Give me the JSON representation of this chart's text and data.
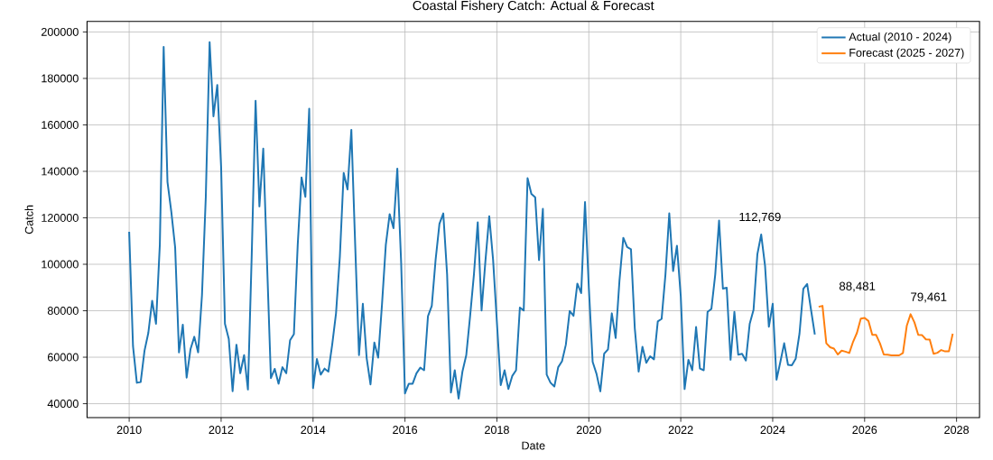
{
  "chart_data": {
    "type": "line",
    "title": "Coastal Fishery Catch: Actual & Forecast",
    "xlabel": "Date",
    "ylabel": "Catch",
    "xlim": [
      "2009-02",
      "2028-07"
    ],
    "xticks": [
      "2010",
      "2012",
      "2014",
      "2016",
      "2018",
      "2020",
      "2022",
      "2024",
      "2026",
      "2028"
    ],
    "ylim": [
      34000,
      204500
    ],
    "yticks": [
      40000,
      60000,
      80000,
      100000,
      120000,
      140000,
      160000,
      180000,
      200000
    ],
    "grid": true,
    "legend": "top right",
    "annotations": [
      "112,769",
      "88,481",
      "79,461"
    ],
    "series": [
      {
        "name": "Actual (2010 - 2024)",
        "color": "#1f77b4",
        "x": [
          "2010-01",
          "2010-02",
          "2010-03",
          "2010-04",
          "2010-05",
          "2010-06",
          "2010-07",
          "2010-08",
          "2010-09",
          "2010-10",
          "2010-11",
          "2010-12",
          "2011-01",
          "2011-02",
          "2011-03",
          "2011-04",
          "2011-05",
          "2011-06",
          "2011-07",
          "2011-08",
          "2011-09",
          "2011-10",
          "2011-11",
          "2011-12",
          "2012-01",
          "2012-02",
          "2012-03",
          "2012-04",
          "2012-05",
          "2012-06",
          "2012-07",
          "2012-08",
          "2012-09",
          "2012-10",
          "2012-11",
          "2012-12",
          "2013-01",
          "2013-02",
          "2013-03",
          "2013-04",
          "2013-05",
          "2013-06",
          "2013-07",
          "2013-08",
          "2013-09",
          "2013-10",
          "2013-11",
          "2013-12",
          "2014-01",
          "2014-02",
          "2014-03",
          "2014-04",
          "2014-05",
          "2014-06",
          "2014-07",
          "2014-08",
          "2014-09",
          "2014-10",
          "2014-11",
          "2014-12",
          "2015-01",
          "2015-02",
          "2015-03",
          "2015-04",
          "2015-05",
          "2015-06",
          "2015-07",
          "2015-08",
          "2015-09",
          "2015-10",
          "2015-11",
          "2015-12",
          "2016-01",
          "2016-02",
          "2016-03",
          "2016-04",
          "2016-05",
          "2016-06",
          "2016-07",
          "2016-08",
          "2016-09",
          "2016-10",
          "2016-11",
          "2016-12",
          "2017-01",
          "2017-02",
          "2017-03",
          "2017-04",
          "2017-05",
          "2017-06",
          "2017-07",
          "2017-08",
          "2017-09",
          "2017-10",
          "2017-11",
          "2017-12",
          "2018-01",
          "2018-02",
          "2018-03",
          "2018-04",
          "2018-05",
          "2018-06",
          "2018-07",
          "2018-08",
          "2018-09",
          "2018-10",
          "2018-11",
          "2018-12",
          "2019-01",
          "2019-02",
          "2019-03",
          "2019-04",
          "2019-05",
          "2019-06",
          "2019-07",
          "2019-08",
          "2019-09",
          "2019-10",
          "2019-11",
          "2019-12",
          "2020-01",
          "2020-02",
          "2020-03",
          "2020-04",
          "2020-05",
          "2020-06",
          "2020-07",
          "2020-08",
          "2020-09",
          "2020-10",
          "2020-11",
          "2020-12",
          "2021-01",
          "2021-02",
          "2021-03",
          "2021-04",
          "2021-05",
          "2021-06",
          "2021-07",
          "2021-08",
          "2021-09",
          "2021-10",
          "2021-11",
          "2021-12",
          "2022-01",
          "2022-02",
          "2022-03",
          "2022-04",
          "2022-05",
          "2022-06",
          "2022-07",
          "2022-08",
          "2022-09",
          "2022-10",
          "2022-11",
          "2022-12",
          "2023-01",
          "2023-02",
          "2023-03",
          "2023-04",
          "2023-05",
          "2023-06",
          "2023-07",
          "2023-08",
          "2023-09",
          "2023-10",
          "2023-11",
          "2023-12",
          "2024-01",
          "2024-02",
          "2024-03",
          "2024-04",
          "2024-05",
          "2024-06",
          "2024-07",
          "2024-08",
          "2024-09",
          "2024-10",
          "2024-11",
          "2024-12"
        ],
        "values": [
          114000,
          64700,
          49000,
          49300,
          62800,
          70500,
          84300,
          74400,
          108400,
          193600,
          135400,
          122600,
          107200,
          62100,
          74000,
          51200,
          63400,
          68800,
          62100,
          86600,
          129000,
          195600,
          163700,
          177200,
          141900,
          74400,
          67900,
          45400,
          65400,
          53100,
          60900,
          46100,
          104600,
          170400,
          124900,
          149800,
          100000,
          51000,
          55000,
          48600,
          55700,
          53100,
          67300,
          69900,
          108400,
          137400,
          129000,
          167000,
          46700,
          59200,
          52500,
          55100,
          53800,
          65400,
          78900,
          103300,
          139300,
          132200,
          157900,
          108400,
          60900,
          83000,
          59600,
          48300,
          66300,
          59800,
          82700,
          108400,
          121600,
          115500,
          141200,
          100800,
          44400,
          48600,
          48600,
          53100,
          55500,
          54400,
          77600,
          82100,
          102000,
          117400,
          121900,
          95600,
          44800,
          54400,
          42200,
          53800,
          60900,
          77600,
          95600,
          118100,
          80100,
          101400,
          120700,
          102000,
          75000,
          48000,
          54400,
          46300,
          51900,
          54400,
          81400,
          80100,
          137100,
          130300,
          128800,
          101800,
          123900,
          52500,
          49000,
          47400,
          55700,
          58300,
          65400,
          79900,
          77800,
          91700,
          87600,
          126800,
          90000,
          58000,
          52900,
          45300,
          61500,
          63400,
          78900,
          68300,
          93000,
          111400,
          107400,
          106500,
          72400,
          53800,
          64500,
          57600,
          60400,
          59100,
          75400,
          76500,
          95600,
          121900,
          97100,
          108000,
          86300,
          46300,
          58900,
          54400,
          73000,
          55100,
          54400,
          79500,
          80800,
          95600,
          118800,
          89500,
          89900,
          58900,
          79500,
          61100,
          61500,
          58600,
          74400,
          80400,
          104300,
          112800,
          99400,
          73100,
          83000,
          50300,
          58000,
          66000,
          56700,
          56500,
          59300,
          70200,
          89500,
          91500,
          80500,
          69800
        ]
      },
      {
        "name": "Forecast (2025 - 2027)",
        "color": "#ff7f0e",
        "x": [
          "2025-01",
          "2025-02",
          "2025-03",
          "2025-04",
          "2025-05",
          "2025-06",
          "2025-07",
          "2025-08",
          "2025-09",
          "2025-10",
          "2025-11",
          "2025-12",
          "2026-01",
          "2026-02",
          "2026-03",
          "2026-04",
          "2026-05",
          "2026-06",
          "2026-07",
          "2026-08",
          "2026-09",
          "2026-10",
          "2026-11",
          "2026-12",
          "2027-01",
          "2027-02",
          "2027-03",
          "2027-04",
          "2027-05",
          "2027-06",
          "2027-07",
          "2027-08",
          "2027-09",
          "2027-10",
          "2027-11",
          "2027-12"
        ],
        "values": [
          81700,
          82100,
          66000,
          64300,
          63700,
          61200,
          62800,
          62400,
          61800,
          66700,
          70500,
          76600,
          76900,
          75600,
          69600,
          69600,
          66000,
          61200,
          61100,
          60800,
          60800,
          60800,
          61800,
          73500,
          78500,
          75000,
          69600,
          69500,
          67700,
          67600,
          61500,
          61900,
          63100,
          62500,
          62500,
          70100
        ]
      }
    ]
  }
}
